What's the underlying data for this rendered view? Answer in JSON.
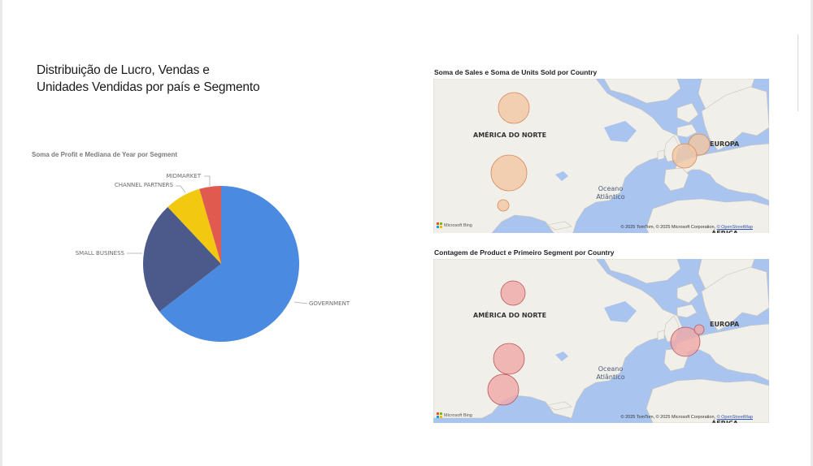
{
  "report": {
    "title_line1": "Distribuição de Lucro, Vendas e",
    "title_line2": "Unidades Vendidas por país e Segmento"
  },
  "pie_visual": {
    "title": "Soma de Profit e Mediana de Year por Segment"
  },
  "chart_data": {
    "type": "pie",
    "title": "Soma de Profit e Mediana de Year por Segment",
    "slices": [
      {
        "label": "GOVERNMENT",
        "value": 64.5,
        "color": "#4a8ae0"
      },
      {
        "label": "SMALL BUSINESS",
        "value": 23.5,
        "color": "#4b5a8a"
      },
      {
        "label": "CHANNEL PARTNERS",
        "value": 7.5,
        "color": "#f2c811"
      },
      {
        "label": "MIDMARKET",
        "value": 4.5,
        "color": "#e05a4f"
      }
    ]
  },
  "maps": [
    {
      "title": "Soma de Sales e Soma de Units Sold por Country",
      "labels": {
        "north_america": "AMÉRICA DO NORTE",
        "europe": "EUROPA",
        "ocean_line1": "Oceano",
        "ocean_line2": "Atlântico",
        "africa": "ÁFRICA"
      },
      "bubble_color": "#f2c8a4",
      "bubble_stroke": "#d88a5c"
    },
    {
      "title": "Contagem de Product e Primeiro Segment por Country",
      "labels": {
        "north_america": "AMÉRICA DO NORTE",
        "europe": "EUROPA",
        "ocean_line1": "Oceano",
        "ocean_line2": "Atlântico",
        "africa": "ÁFRICA"
      },
      "bubble_color": "#efaaa8",
      "bubble_stroke": "#b8585a"
    }
  ],
  "map_footer": {
    "bing": "Microsoft Bing",
    "attribution": "© 2025 TomTom, © 2025 Microsoft Corporation, ",
    "osm_link": "© OpenStreetMap"
  }
}
